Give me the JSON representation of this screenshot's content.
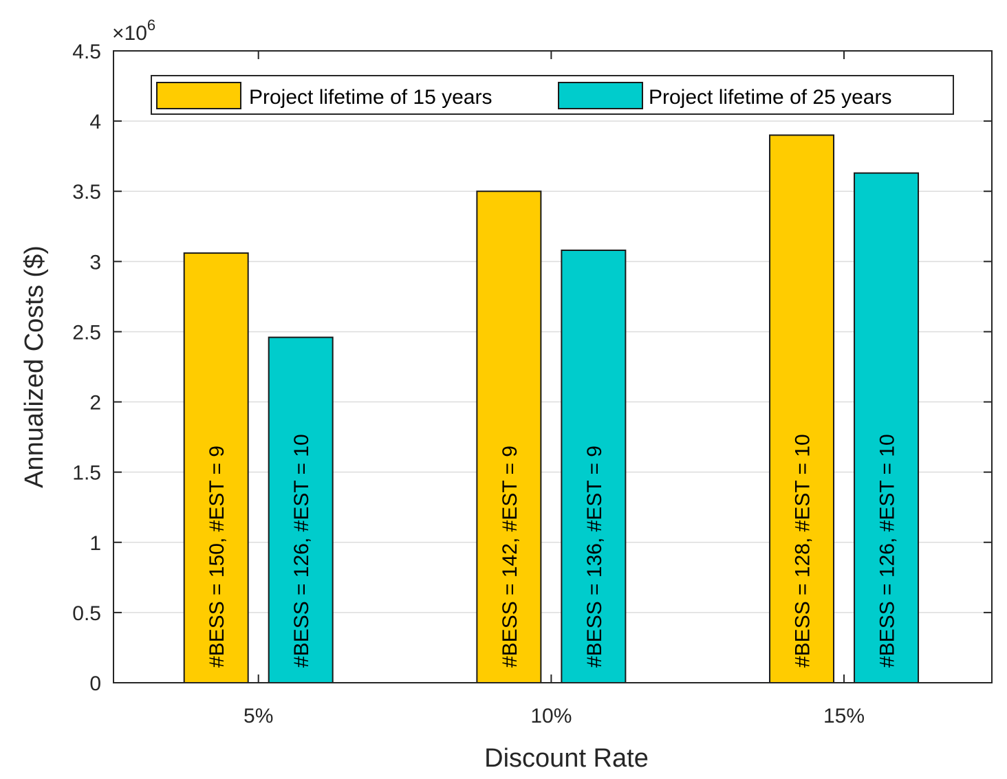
{
  "chart_data": {
    "type": "bar",
    "title": "",
    "xlabel": "Discount Rate",
    "ylabel": "Annualized Costs ($)",
    "y_exponent_base": "×10",
    "y_exponent_power": "6",
    "ylim": [
      0,
      4.5
    ],
    "yticks": [
      0,
      0.5,
      1,
      1.5,
      2,
      2.5,
      3,
      3.5,
      4,
      4.5
    ],
    "ytick_labels": [
      "0",
      "0.5",
      "1",
      "1.5",
      "2",
      "2.5",
      "3",
      "3.5",
      "4",
      "4.5"
    ],
    "categories": [
      "5%",
      "10%",
      "15%"
    ],
    "grid": true,
    "legend_position": "top",
    "series": [
      {
        "name": "Project lifetime of 15 years",
        "color": "#FFCC00",
        "values": [
          3.06,
          3.5,
          3.9
        ],
        "labels": [
          "#BESS = 150, #EST = 9",
          "#BESS = 142, #EST = 9",
          "#BESS = 128, #EST = 10"
        ]
      },
      {
        "name": "Project lifetime of 25 years",
        "color": "#00CCCC",
        "values": [
          2.46,
          3.08,
          3.63
        ],
        "labels": [
          "#BESS = 126, #EST = 10",
          "#BESS = 136, #EST = 9",
          "#BESS = 126, #EST = 10"
        ]
      }
    ]
  }
}
